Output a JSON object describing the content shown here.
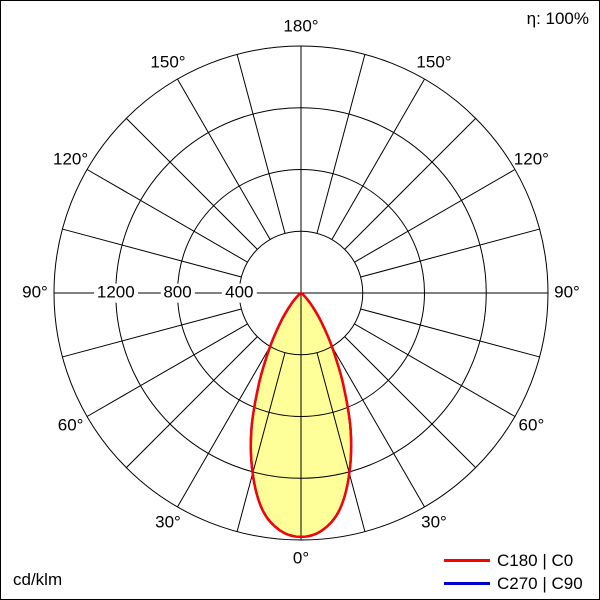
{
  "header": {
    "efficiency": "η: 100%"
  },
  "footer": {
    "unit": "cd/klm"
  },
  "legend": {
    "items": [
      {
        "label": "C180 | C0",
        "color": "#ff0000"
      },
      {
        "label": "C270 | C90",
        "color": "#0000cc"
      }
    ]
  },
  "polar_axis": {
    "max_value": 1600,
    "angle_step_deg": 15,
    "radial_tick_values": [
      400,
      800,
      1200
    ],
    "radial_tick_labels": [
      "400",
      "800",
      "1200"
    ],
    "angle_tick_labels": [
      {
        "text": "180°",
        "angle": 180,
        "side": 1
      },
      {
        "text": "150°",
        "angle": 150,
        "side": -1
      },
      {
        "text": "150°",
        "angle": 150,
        "side": 1
      },
      {
        "text": "120°",
        "angle": 120,
        "side": -1
      },
      {
        "text": "120°",
        "angle": 120,
        "side": 1
      },
      {
        "text": "90°",
        "angle": 90,
        "side": -1
      },
      {
        "text": "90°",
        "angle": 90,
        "side": 1
      },
      {
        "text": "60°",
        "angle": 60,
        "side": -1
      },
      {
        "text": "60°",
        "angle": 60,
        "side": 1
      },
      {
        "text": "30°",
        "angle": 30,
        "side": -1
      },
      {
        "text": "30°",
        "angle": 30,
        "side": 1
      },
      {
        "text": "0°",
        "angle": 0,
        "side": 1
      }
    ]
  },
  "chart_data": {
    "type": "line",
    "polar": true,
    "title": "Luminous intensity distribution (polar photometric diagram)",
    "units": "cd/klm",
    "efficiency": "η: 100%",
    "radial_axis": {
      "ticks": [
        400,
        800,
        1200
      ],
      "max": 1600,
      "unit": "cd/klm"
    },
    "angle_grid_step_deg": 15,
    "angles_deg": [
      0,
      5,
      10,
      15,
      20,
      25,
      30,
      35,
      40,
      45,
      50,
      55,
      60,
      65,
      70,
      75,
      80,
      85,
      90
    ],
    "series": [
      {
        "name": "C180 | C0",
        "color": "#ff0000",
        "fill": "#ffff99",
        "values": [
          1580,
          1545,
          1430,
          1210,
          940,
          640,
          400,
          230,
          120,
          55,
          22,
          8,
          3,
          1,
          0,
          0,
          0,
          0,
          0
        ]
      },
      {
        "name": "C270 | C90",
        "color": "#0000cc",
        "fill": null,
        "values": [
          1580,
          1545,
          1430,
          1210,
          940,
          640,
          400,
          230,
          120,
          55,
          22,
          8,
          3,
          1,
          0,
          0,
          0,
          0,
          0
        ]
      }
    ]
  }
}
